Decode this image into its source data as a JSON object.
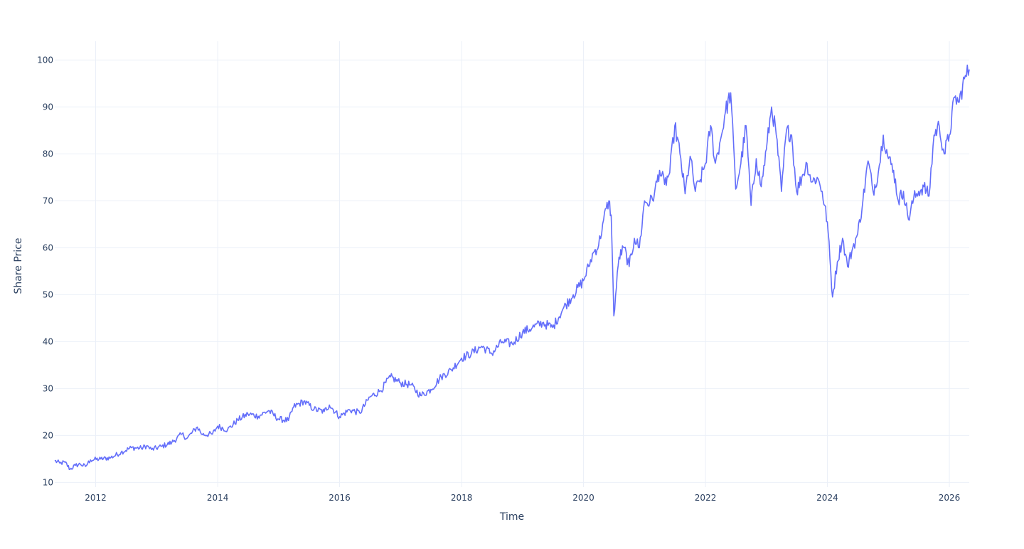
{
  "chart_data": {
    "type": "line",
    "title": "",
    "xlabel": "Time",
    "ylabel": "Share Price",
    "xlim": [
      "2011-05-01",
      "2026-04-30"
    ],
    "ylim": [
      9,
      104
    ],
    "x_ticks": [
      "2012",
      "2014",
      "2016",
      "2018",
      "2020",
      "2022",
      "2024",
      "2026"
    ],
    "y_ticks": [
      10,
      20,
      30,
      40,
      50,
      60,
      70,
      80,
      90,
      100
    ],
    "grid": true,
    "legend": "none",
    "series": [
      {
        "color": "#636efa",
        "points": [
          [
            "2011-05-01",
            14.6
          ],
          [
            "2011-06-01",
            14.1
          ],
          [
            "2011-07-01",
            14.3
          ],
          [
            "2011-08-01",
            12.8
          ],
          [
            "2011-09-01",
            13.6
          ],
          [
            "2011-10-01",
            13.9
          ],
          [
            "2011-11-01",
            13.4
          ],
          [
            "2011-12-01",
            14.8
          ],
          [
            "2012-02-01",
            15.0
          ],
          [
            "2012-04-01",
            15.3
          ],
          [
            "2012-06-01",
            16.4
          ],
          [
            "2012-08-01",
            17.4
          ],
          [
            "2012-10-01",
            17.3
          ],
          [
            "2012-11-01",
            17.8
          ],
          [
            "2012-12-01",
            17.0
          ],
          [
            "2013-02-01",
            17.7
          ],
          [
            "2013-04-01",
            18.5
          ],
          [
            "2013-06-01",
            20.3
          ],
          [
            "2013-07-01",
            19.4
          ],
          [
            "2013-09-01",
            21.8
          ],
          [
            "2013-10-01",
            20.2
          ],
          [
            "2013-12-01",
            20.3
          ],
          [
            "2014-01-01",
            22.0
          ],
          [
            "2014-03-01",
            21.2
          ],
          [
            "2014-05-01",
            23.3
          ],
          [
            "2014-07-01",
            24.6
          ],
          [
            "2014-09-01",
            24.1
          ],
          [
            "2014-11-01",
            25.3
          ],
          [
            "2015-01-01",
            23.5
          ],
          [
            "2015-03-01",
            23.2
          ],
          [
            "2015-04-01",
            26.1
          ],
          [
            "2015-06-01",
            27.3
          ],
          [
            "2015-08-01",
            25.6
          ],
          [
            "2015-10-01",
            25.1
          ],
          [
            "2015-11-01",
            26.5
          ],
          [
            "2016-01-01",
            24.0
          ],
          [
            "2016-03-01",
            25.5
          ],
          [
            "2016-05-01",
            24.8
          ],
          [
            "2016-07-01",
            28.2
          ],
          [
            "2016-09-01",
            29.5
          ],
          [
            "2016-11-01",
            32.5
          ],
          [
            "2017-01-01",
            31.2
          ],
          [
            "2017-03-01",
            30.8
          ],
          [
            "2017-05-01",
            28.5
          ],
          [
            "2017-07-01",
            29.8
          ],
          [
            "2017-09-01",
            32.5
          ],
          [
            "2017-11-01",
            34.0
          ],
          [
            "2018-01-01",
            36.5
          ],
          [
            "2018-03-01",
            37.5
          ],
          [
            "2018-05-01",
            39.0
          ],
          [
            "2018-07-01",
            37.5
          ],
          [
            "2018-09-01",
            40.0
          ],
          [
            "2018-11-01",
            39.5
          ],
          [
            "2019-01-01",
            42.0
          ],
          [
            "2019-03-01",
            43.0
          ],
          [
            "2019-05-01",
            44.0
          ],
          [
            "2019-07-01",
            43.0
          ],
          [
            "2019-09-01",
            47.0
          ],
          [
            "2019-11-01",
            50.0
          ],
          [
            "2020-01-01",
            53.0
          ],
          [
            "2020-02-01",
            56.0
          ],
          [
            "2020-03-01",
            59.0
          ],
          [
            "2020-04-01",
            60.5
          ],
          [
            "2020-05-01",
            66.0
          ],
          [
            "2020-06-01",
            70.0
          ],
          [
            "2020-06-15",
            67.0
          ],
          [
            "2020-07-01",
            45.5
          ],
          [
            "2020-08-01",
            58.0
          ],
          [
            "2020-09-01",
            60.0
          ],
          [
            "2020-10-01",
            56.0
          ],
          [
            "2020-11-01",
            62.0
          ],
          [
            "2020-12-01",
            60.0
          ],
          [
            "2021-01-01",
            70.0
          ],
          [
            "2021-02-01",
            69.5
          ],
          [
            "2021-03-01",
            71.5
          ],
          [
            "2021-04-01",
            76.5
          ],
          [
            "2021-05-01",
            73.5
          ],
          [
            "2021-06-01",
            76.0
          ],
          [
            "2021-07-01",
            86.0
          ],
          [
            "2021-08-01",
            80.0
          ],
          [
            "2021-09-01",
            71.5
          ],
          [
            "2021-10-01",
            79.5
          ],
          [
            "2021-11-01",
            72.0
          ],
          [
            "2021-12-01",
            74.5
          ],
          [
            "2022-01-01",
            78.0
          ],
          [
            "2022-02-01",
            86.0
          ],
          [
            "2022-03-01",
            78.0
          ],
          [
            "2022-04-01",
            83.0
          ],
          [
            "2022-05-01",
            89.0
          ],
          [
            "2022-06-01",
            93.0
          ],
          [
            "2022-07-01",
            72.5
          ],
          [
            "2022-08-01",
            78.0
          ],
          [
            "2022-09-01",
            86.0
          ],
          [
            "2022-10-01",
            69.0
          ],
          [
            "2022-11-01",
            79.0
          ],
          [
            "2022-12-01",
            73.0
          ],
          [
            "2023-01-01",
            81.0
          ],
          [
            "2023-02-01",
            90.0
          ],
          [
            "2023-03-01",
            84.0
          ],
          [
            "2023-04-01",
            72.0
          ],
          [
            "2023-05-01",
            85.0
          ],
          [
            "2023-06-01",
            84.0
          ],
          [
            "2023-07-01",
            72.0
          ],
          [
            "2023-08-01",
            75.0
          ],
          [
            "2023-09-01",
            78.0
          ],
          [
            "2023-10-01",
            74.0
          ],
          [
            "2023-11-01",
            75.0
          ],
          [
            "2023-12-01",
            72.0
          ],
          [
            "2024-01-01",
            65.5
          ],
          [
            "2024-02-01",
            49.5
          ],
          [
            "2024-03-01",
            57.0
          ],
          [
            "2024-04-01",
            62.0
          ],
          [
            "2024-05-01",
            56.0
          ],
          [
            "2024-06-01",
            60.0
          ],
          [
            "2024-07-01",
            63.0
          ],
          [
            "2024-08-01",
            70.0
          ],
          [
            "2024-09-01",
            78.5
          ],
          [
            "2024-10-01",
            72.0
          ],
          [
            "2024-11-01",
            76.0
          ],
          [
            "2024-12-01",
            84.0
          ],
          [
            "2025-01-01",
            79.0
          ],
          [
            "2025-02-01",
            76.5
          ],
          [
            "2025-03-01",
            70.0
          ],
          [
            "2025-04-01",
            72.0
          ],
          [
            "2025-05-01",
            66.0
          ],
          [
            "2025-06-01",
            70.5
          ],
          [
            "2025-07-01",
            72.0
          ],
          [
            "2025-08-01",
            73.0
          ],
          [
            "2025-09-01",
            71.0
          ],
          [
            "2025-10-01",
            84.0
          ],
          [
            "2025-11-01",
            86.0
          ],
          [
            "2025-12-01",
            80.0
          ],
          [
            "2026-01-01",
            84.0
          ],
          [
            "2026-02-01",
            92.0
          ],
          [
            "2026-03-01",
            91.0
          ],
          [
            "2026-04-01",
            96.0
          ],
          [
            "2026-04-30",
            98.0
          ]
        ]
      }
    ]
  }
}
